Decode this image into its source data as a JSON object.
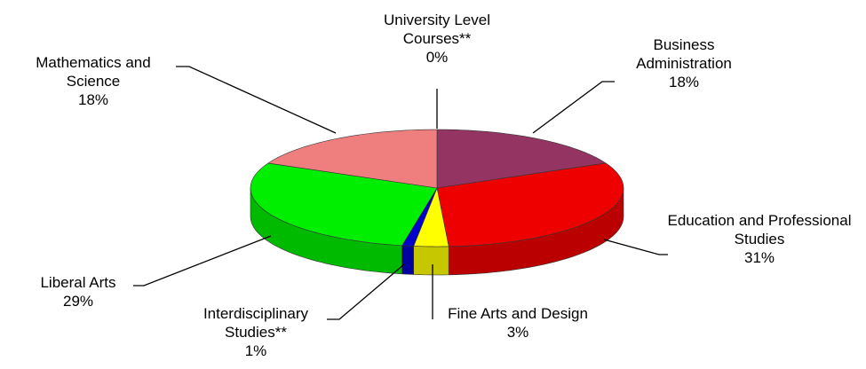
{
  "chart_data": {
    "type": "pie3d",
    "categories": [
      "University Level Courses**",
      "Business Administration",
      "Education and Professional Studies",
      "Fine Arts and Design",
      "Interdisciplinary Studies**",
      "Liberal Arts",
      "Mathematics and Science"
    ],
    "values": [
      0,
      18,
      31,
      3,
      1,
      29,
      18
    ],
    "value_labels": [
      "0%",
      "18%",
      "31%",
      "3%",
      "1%",
      "29%",
      "18%"
    ],
    "colors": [
      "#7f7fff",
      "#943462",
      "#ee0000",
      "#ffff00",
      "#0000cc",
      "#00ee00",
      "#ef7f7f"
    ]
  }
}
